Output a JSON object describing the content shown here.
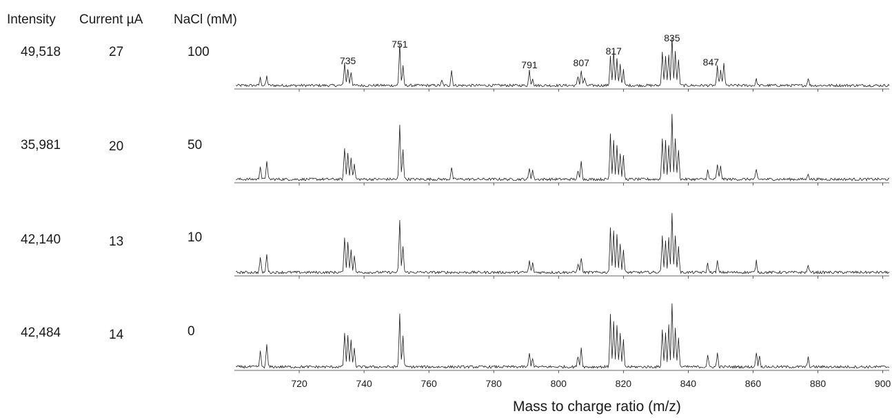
{
  "headers": {
    "intensity": "Intensity",
    "current": "Current µA",
    "nacl": "NaCl (mM)"
  },
  "rows": [
    {
      "intensity": "49,518",
      "current": "27",
      "nacl": "100"
    },
    {
      "intensity": "35,981",
      "current": "20",
      "nacl": "50"
    },
    {
      "intensity": "42,140",
      "current": "13",
      "nacl": "10"
    },
    {
      "intensity": "42,484",
      "current": "14",
      "nacl": "0"
    }
  ],
  "chart_data": {
    "type": "line",
    "title": "",
    "xlabel": "Mass to charge ratio (m/z)",
    "ylabel": "",
    "xlim": [
      700,
      902
    ],
    "xticks": [
      720,
      740,
      760,
      780,
      800,
      820,
      840,
      860,
      880,
      900
    ],
    "grid": false,
    "peak_labels": [
      {
        "x": 735,
        "label": "735"
      },
      {
        "x": 751,
        "label": "751"
      },
      {
        "x": 791,
        "label": "791"
      },
      {
        "x": 807,
        "label": "807"
      },
      {
        "x": 817,
        "label": "817"
      },
      {
        "x": 835,
        "label": "835"
      },
      {
        "x": 847,
        "label": "847"
      }
    ],
    "series": [
      {
        "peaks": [
          [
            708,
            0.1
          ],
          [
            710,
            0.12
          ],
          [
            734,
            0.3
          ],
          [
            735,
            0.22
          ],
          [
            736,
            0.18
          ],
          [
            751,
            0.55
          ],
          [
            752,
            0.25
          ],
          [
            764,
            0.06
          ],
          [
            767,
            0.2
          ],
          [
            791,
            0.2
          ],
          [
            792,
            0.1
          ],
          [
            806,
            0.12
          ],
          [
            807,
            0.2
          ],
          [
            808,
            0.1
          ],
          [
            816,
            0.4
          ],
          [
            817,
            0.45
          ],
          [
            818,
            0.35
          ],
          [
            819,
            0.28
          ],
          [
            820,
            0.2
          ],
          [
            832,
            0.45
          ],
          [
            833,
            0.4
          ],
          [
            834,
            0.4
          ],
          [
            835,
            0.65
          ],
          [
            836,
            0.45
          ],
          [
            837,
            0.35
          ],
          [
            849,
            0.25
          ],
          [
            850,
            0.2
          ],
          [
            851,
            0.3
          ],
          [
            861,
            0.08
          ],
          [
            877,
            0.1
          ]
        ]
      },
      {
        "peaks": [
          [
            708,
            0.18
          ],
          [
            710,
            0.25
          ],
          [
            734,
            0.42
          ],
          [
            735,
            0.35
          ],
          [
            736,
            0.3
          ],
          [
            737,
            0.2
          ],
          [
            751,
            0.72
          ],
          [
            752,
            0.4
          ],
          [
            767,
            0.15
          ],
          [
            791,
            0.15
          ],
          [
            792,
            0.12
          ],
          [
            806,
            0.1
          ],
          [
            807,
            0.25
          ],
          [
            816,
            0.6
          ],
          [
            817,
            0.52
          ],
          [
            818,
            0.45
          ],
          [
            819,
            0.35
          ],
          [
            820,
            0.3
          ],
          [
            832,
            0.55
          ],
          [
            833,
            0.5
          ],
          [
            834,
            0.45
          ],
          [
            835,
            0.85
          ],
          [
            836,
            0.55
          ],
          [
            837,
            0.4
          ],
          [
            846,
            0.12
          ],
          [
            849,
            0.2
          ],
          [
            850,
            0.18
          ],
          [
            861,
            0.12
          ],
          [
            877,
            0.08
          ]
        ]
      },
      {
        "peaks": [
          [
            708,
            0.2
          ],
          [
            710,
            0.25
          ],
          [
            734,
            0.45
          ],
          [
            735,
            0.4
          ],
          [
            736,
            0.3
          ],
          [
            737,
            0.22
          ],
          [
            751,
            0.7
          ],
          [
            752,
            0.35
          ],
          [
            791,
            0.15
          ],
          [
            792,
            0.12
          ],
          [
            806,
            0.12
          ],
          [
            807,
            0.2
          ],
          [
            816,
            0.6
          ],
          [
            817,
            0.55
          ],
          [
            818,
            0.5
          ],
          [
            819,
            0.38
          ],
          [
            820,
            0.3
          ],
          [
            832,
            0.5
          ],
          [
            833,
            0.42
          ],
          [
            834,
            0.45
          ],
          [
            835,
            0.8
          ],
          [
            836,
            0.5
          ],
          [
            837,
            0.35
          ],
          [
            846,
            0.12
          ],
          [
            849,
            0.15
          ],
          [
            861,
            0.15
          ],
          [
            877,
            0.1
          ]
        ]
      },
      {
        "peaks": [
          [
            708,
            0.2
          ],
          [
            710,
            0.3
          ],
          [
            734,
            0.45
          ],
          [
            735,
            0.42
          ],
          [
            736,
            0.35
          ],
          [
            737,
            0.25
          ],
          [
            751,
            0.7
          ],
          [
            752,
            0.4
          ],
          [
            791,
            0.18
          ],
          [
            792,
            0.12
          ],
          [
            806,
            0.15
          ],
          [
            807,
            0.25
          ],
          [
            816,
            0.7
          ],
          [
            817,
            0.6
          ],
          [
            818,
            0.55
          ],
          [
            819,
            0.45
          ],
          [
            820,
            0.35
          ],
          [
            832,
            0.5
          ],
          [
            833,
            0.45
          ],
          [
            834,
            0.55
          ],
          [
            835,
            0.85
          ],
          [
            836,
            0.5
          ],
          [
            837,
            0.4
          ],
          [
            846,
            0.15
          ],
          [
            849,
            0.18
          ],
          [
            861,
            0.2
          ],
          [
            862,
            0.15
          ],
          [
            877,
            0.12
          ]
        ]
      }
    ]
  }
}
